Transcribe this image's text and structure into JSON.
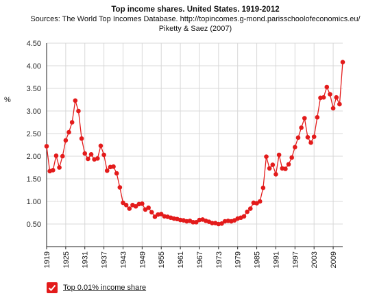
{
  "chart_data": {
    "type": "line",
    "title": "Top income shares. United States. 1919-2012",
    "subtitle_lines": [
      "Sources: The World Top Incomes Database. http://topincomes.g-mond.parisschoolofeconomics.eu/",
      "Piketty & Saez (2007)"
    ],
    "ylabel": "%",
    "xlabel": "",
    "xlim": [
      1919,
      2012
    ],
    "ylim": [
      0,
      4.5
    ],
    "y_ticks": [
      "0.50",
      "1.00",
      "1.50",
      "2.00",
      "2.50",
      "3.00",
      "3.50",
      "4.00",
      "4.50"
    ],
    "x_ticks": [
      "1919",
      "1925",
      "1931",
      "1937",
      "1943",
      "1949",
      "1955",
      "1961",
      "1967",
      "1973",
      "1979",
      "1985",
      "1991",
      "1997",
      "2003",
      "2009"
    ],
    "grid": true,
    "legend_position": "bottom-left",
    "series": [
      {
        "name": "Top 0.01% income share",
        "color": "#e31b1b",
        "x": [
          1919,
          1920,
          1921,
          1922,
          1923,
          1924,
          1925,
          1926,
          1927,
          1928,
          1929,
          1930,
          1931,
          1932,
          1933,
          1934,
          1935,
          1936,
          1937,
          1938,
          1939,
          1940,
          1941,
          1942,
          1943,
          1944,
          1945,
          1946,
          1947,
          1948,
          1949,
          1950,
          1951,
          1952,
          1953,
          1954,
          1955,
          1956,
          1957,
          1958,
          1959,
          1960,
          1961,
          1962,
          1963,
          1964,
          1965,
          1966,
          1967,
          1968,
          1969,
          1970,
          1971,
          1972,
          1973,
          1974,
          1975,
          1976,
          1977,
          1978,
          1979,
          1980,
          1981,
          1982,
          1983,
          1984,
          1985,
          1986,
          1987,
          1988,
          1989,
          1990,
          1991,
          1992,
          1993,
          1994,
          1995,
          1996,
          1997,
          1998,
          1999,
          2000,
          2001,
          2002,
          2003,
          2004,
          2005,
          2006,
          2007,
          2008,
          2009,
          2010,
          2011,
          2012
        ],
        "values": [
          2.22,
          1.67,
          1.69,
          2.01,
          1.75,
          2.0,
          2.35,
          2.53,
          2.75,
          3.23,
          3.0,
          2.39,
          2.06,
          1.94,
          2.04,
          1.93,
          1.95,
          2.23,
          2.03,
          1.68,
          1.76,
          1.77,
          1.62,
          1.31,
          0.97,
          0.92,
          0.84,
          0.92,
          0.89,
          0.94,
          0.95,
          0.82,
          0.86,
          0.76,
          0.66,
          0.71,
          0.72,
          0.67,
          0.66,
          0.64,
          0.62,
          0.61,
          0.59,
          0.58,
          0.56,
          0.57,
          0.54,
          0.54,
          0.59,
          0.6,
          0.57,
          0.55,
          0.52,
          0.52,
          0.5,
          0.51,
          0.56,
          0.57,
          0.56,
          0.58,
          0.62,
          0.64,
          0.67,
          0.77,
          0.84,
          0.97,
          0.96,
          1.0,
          1.3,
          1.99,
          1.73,
          1.81,
          1.6,
          2.03,
          1.73,
          1.72,
          1.82,
          1.97,
          2.2,
          2.41,
          2.63,
          2.84,
          2.42,
          2.3,
          2.43,
          2.86,
          3.29,
          3.3,
          3.53,
          3.37,
          3.06,
          3.3,
          3.15,
          4.08
        ]
      }
    ]
  }
}
